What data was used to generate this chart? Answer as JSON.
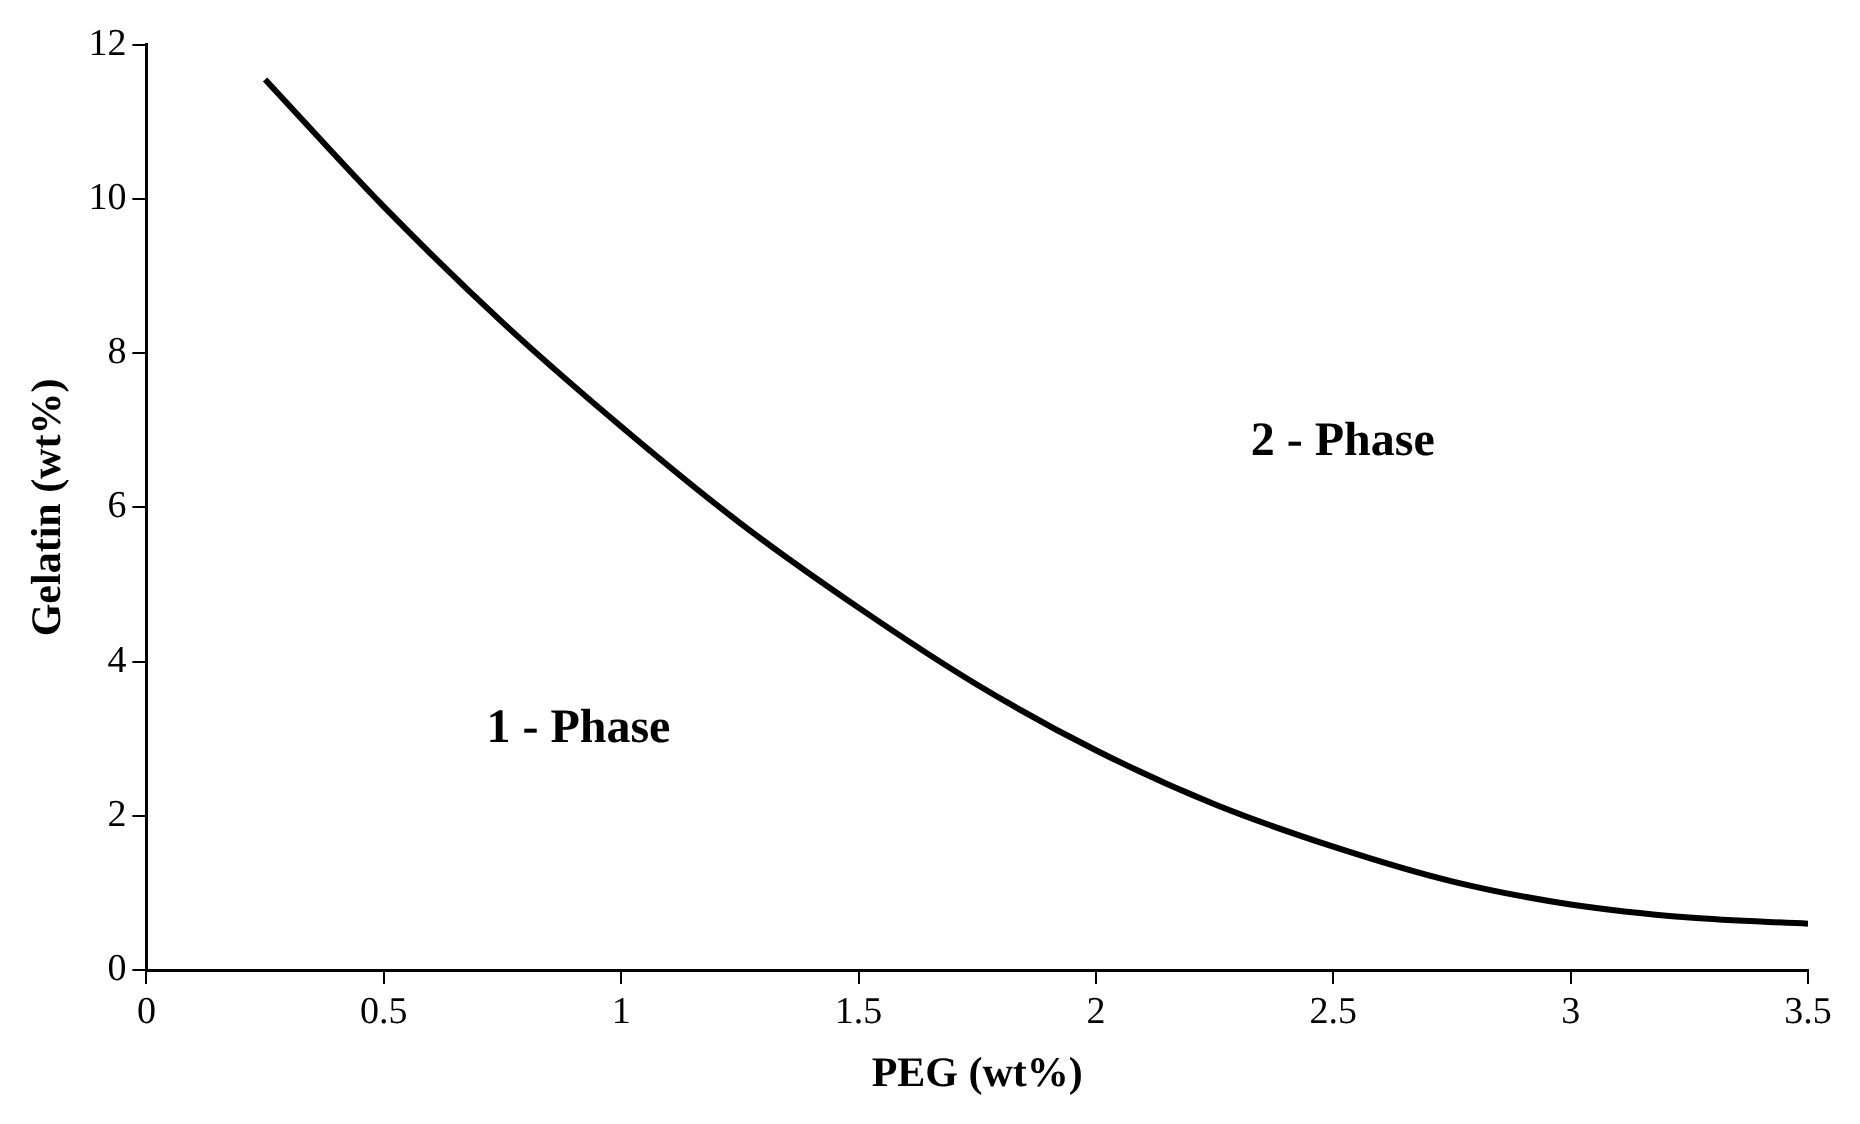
{
  "chart_data": {
    "type": "line",
    "xlabel": "PEG (wt%)",
    "ylabel": "Gelatin (wt%)",
    "x": [
      0.25,
      0.5,
      0.75,
      1,
      1.25,
      1.5,
      1.75,
      2,
      2.25,
      2.5,
      2.75,
      3,
      3.25,
      3.5
    ],
    "series": [
      {
        "color": "#000000",
        "values": [
          11.55,
          9.9,
          8.4,
          7.05,
          5.8,
          4.7,
          3.7,
          2.85,
          2.15,
          1.6,
          1.15,
          0.85,
          0.68,
          0.6
        ]
      }
    ],
    "xlim": [
      0,
      3.5
    ],
    "xticks": [
      0,
      0.5,
      1,
      1.5,
      2,
      2.5,
      3,
      3.5
    ],
    "ylim": [
      0,
      12
    ],
    "yticks": [
      0,
      2,
      4,
      6,
      8,
      10,
      12
    ],
    "grid": false,
    "legend": false,
    "marker": "none",
    "line_style": "solid",
    "annotations": [
      "2 - Phase",
      "1 - Phase"
    ]
  }
}
